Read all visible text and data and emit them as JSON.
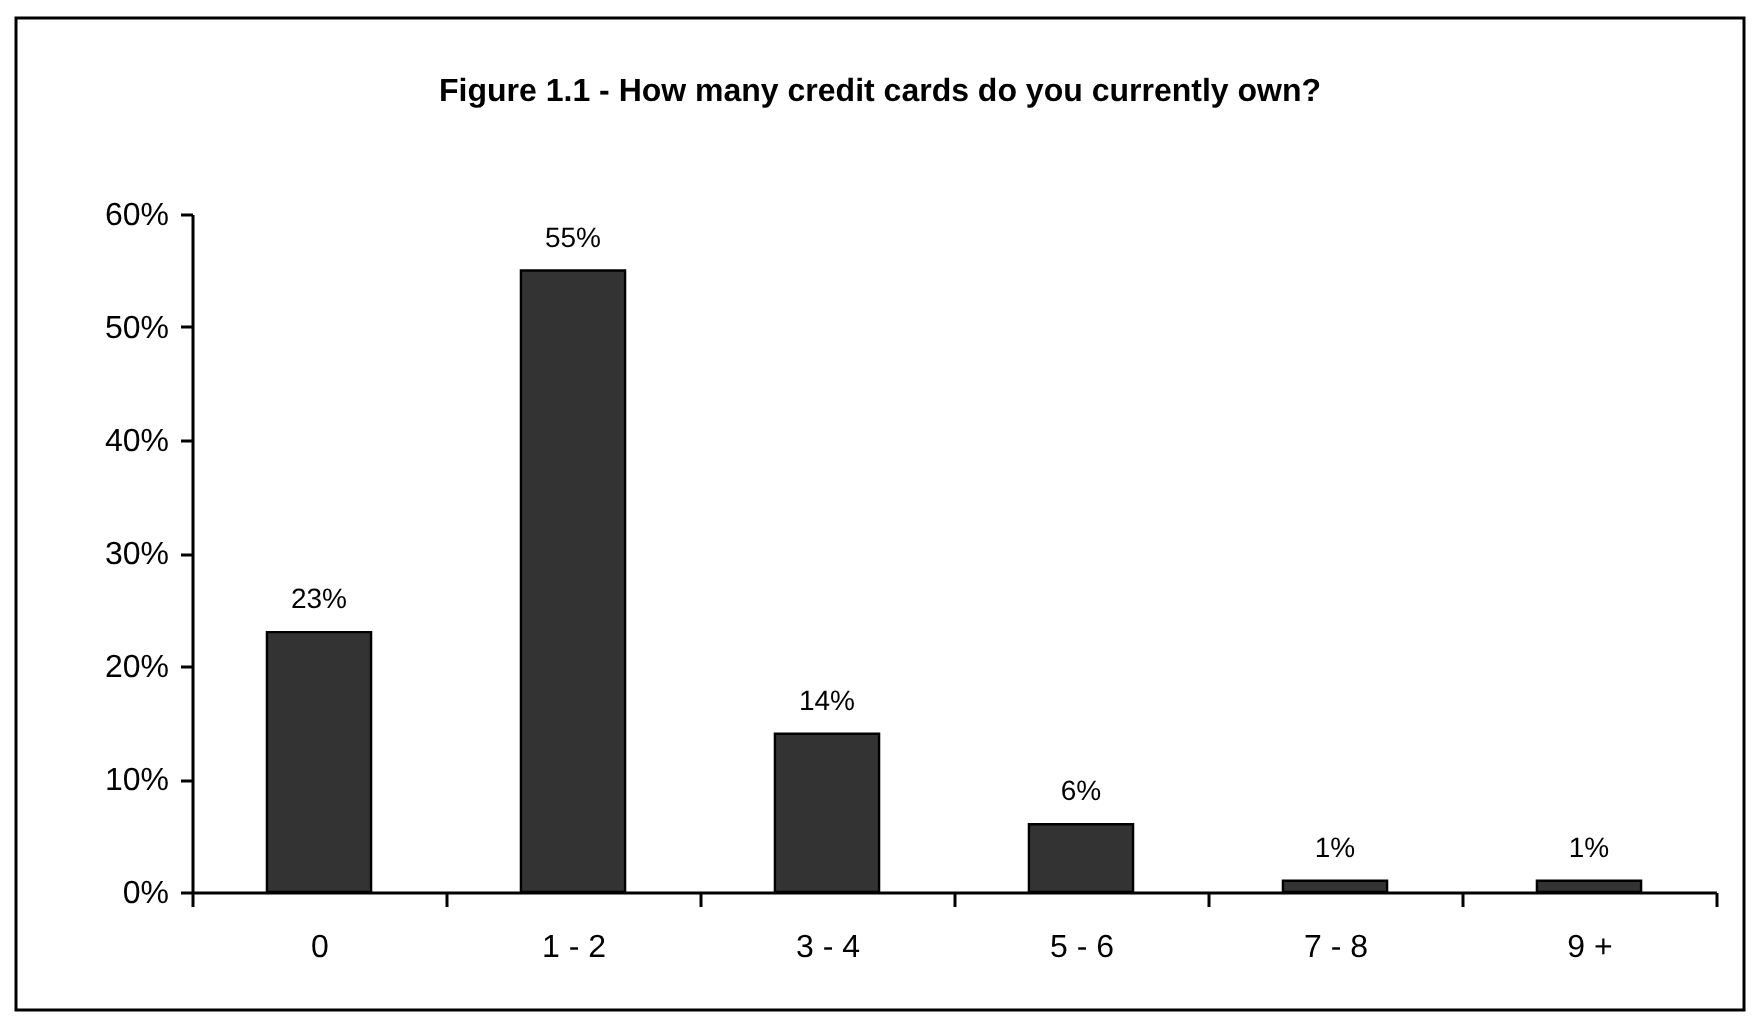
{
  "chart_data": {
    "type": "bar",
    "title": "Figure 1.1 - How many credit cards do you currently own?",
    "categories": [
      "0",
      "1 - 2",
      "3 - 4",
      "5 - 6",
      "7 - 8",
      "9 +"
    ],
    "values": [
      23,
      55,
      14,
      6,
      1,
      1
    ],
    "color": "#333333",
    "value_labels": [
      "23%",
      "55%",
      "14%",
      "6%",
      "1%",
      "1%"
    ],
    "ylim": [
      0,
      60
    ],
    "yticks": [
      {
        "value": 0,
        "label": "0%"
      },
      {
        "value": 10,
        "label": "10%"
      },
      {
        "value": 20,
        "label": "20%"
      },
      {
        "value": 30,
        "label": "30%"
      },
      {
        "value": 40,
        "label": "40%"
      },
      {
        "value": 50,
        "label": "50%"
      },
      {
        "value": 60,
        "label": "60%"
      }
    ],
    "grid": false
  }
}
